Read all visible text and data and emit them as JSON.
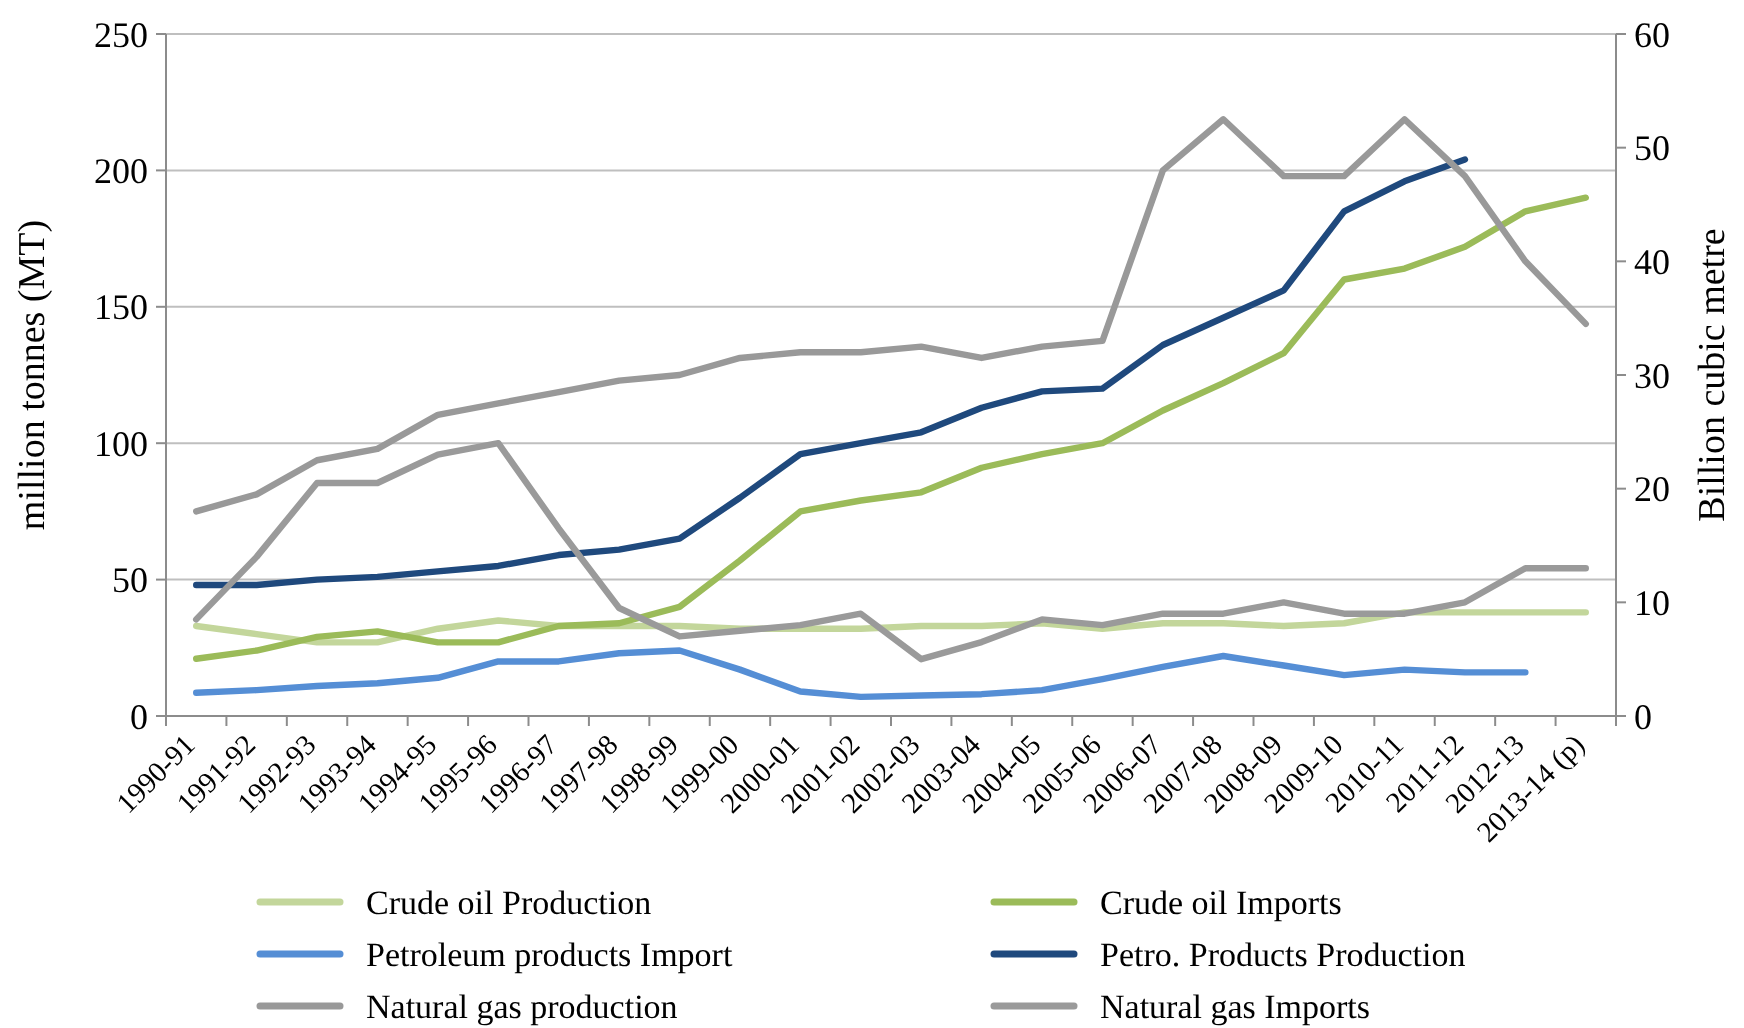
{
  "chart_data": {
    "type": "line",
    "ylabel": "million tonnes (MT)",
    "y2label": "Billion cubic metre",
    "categories": [
      "1990-91",
      "1991-92",
      "1992-93",
      "1993-94",
      "1994-95",
      "1995-96",
      "1996-97",
      "1997-98",
      "1998-99",
      "1999-00",
      "2000-01",
      "2001-02",
      "2002-03",
      "2003-04",
      "2004-05",
      "2005-06",
      "2006-07",
      "2007-08",
      "2008-09",
      "2009-10",
      "2010-11",
      "2011-12",
      "2012-13",
      "2013-14 (p)"
    ],
    "series": [
      {
        "name": "Crude oil Production",
        "color": "#c3d69b",
        "values": [
          33,
          30,
          27,
          27,
          32,
          35,
          33,
          33,
          33,
          32,
          32,
          32,
          33,
          33,
          34,
          32,
          34,
          34,
          33,
          34,
          38,
          38,
          38,
          38
        ]
      },
      {
        "name": "Crude oil Imports",
        "color": "#9bbb59",
        "values": [
          21,
          24,
          29,
          31,
          27,
          27,
          33,
          34,
          40,
          57,
          75,
          79,
          82,
          91,
          96,
          100,
          112,
          122,
          133,
          160,
          164,
          172,
          185,
          190
        ]
      },
      {
        "name": "Petroleum products Import",
        "color": "#558ed5",
        "values": [
          8.5,
          9.5,
          11,
          12,
          14,
          20,
          20,
          23,
          24,
          17,
          9,
          7,
          7.5,
          8,
          9.5,
          13.5,
          18,
          22,
          18.5,
          15,
          17,
          16,
          16,
          null
        ]
      },
      {
        "name": "Petro. Products Production",
        "color": "#1f497d",
        "values": [
          48,
          48,
          50,
          51,
          53,
          55,
          59,
          61,
          65,
          80,
          96,
          100,
          104,
          113,
          119,
          120,
          136,
          146,
          156,
          185,
          196,
          204,
          null,
          null
        ]
      },
      {
        "name": "Natural gas production",
        "color": "#999999",
        "axis": "y2",
        "values": [
          18,
          19.5,
          22.5,
          23.5,
          26.5,
          27.5,
          28.5,
          29.5,
          30,
          31.5,
          32,
          32,
          32.5,
          31.5,
          32.5,
          33,
          48,
          52.5,
          47.5,
          47.5,
          52.5,
          47.5,
          40,
          34.5
        ]
      },
      {
        "name": "Natural gas Imports",
        "color": "#9a9a9a",
        "axis": "y2",
        "values": [
          8.5,
          14,
          20.5,
          20.5,
          23,
          24,
          16.5,
          9.5,
          7,
          7.5,
          8,
          9,
          5,
          6.5,
          8.5,
          8,
          9,
          9,
          10,
          9,
          9,
          10,
          13,
          13
        ]
      }
    ],
    "ylim": [
      0,
      250
    ],
    "yticks": [
      0,
      50,
      100,
      150,
      200,
      250
    ],
    "y2lim": [
      0,
      60
    ],
    "y2ticks": [
      0,
      10,
      20,
      30,
      40,
      50,
      60
    ],
    "grid": "y",
    "legend": "bottom",
    "marker": "none",
    "line_style": "solid"
  }
}
